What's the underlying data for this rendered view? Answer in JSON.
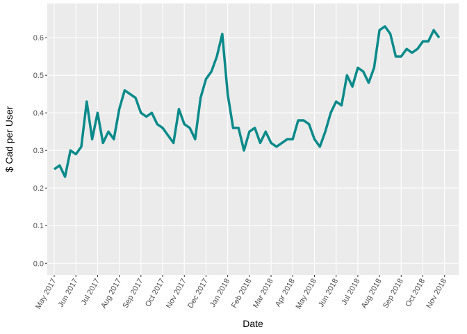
{
  "chart_data": {
    "type": "line",
    "x_label": "Date",
    "y_label": "$ Cad per User",
    "x": [
      0,
      0.25,
      0.5,
      0.75,
      1,
      1.25,
      1.5,
      1.75,
      2,
      2.25,
      2.5,
      2.75,
      3,
      3.25,
      3.5,
      3.75,
      4,
      4.25,
      4.5,
      4.75,
      5,
      5.25,
      5.5,
      5.75,
      6,
      6.25,
      6.5,
      6.75,
      7,
      7.25,
      7.5,
      7.75,
      8,
      8.25,
      8.5,
      8.75,
      9,
      9.25,
      9.5,
      9.75,
      10,
      10.25,
      10.5,
      10.75,
      11,
      11.25,
      11.5,
      11.75,
      12,
      12.25,
      12.5,
      12.75,
      13,
      13.25,
      13.5,
      13.75,
      14,
      14.25,
      14.5,
      14.75,
      15,
      15.25,
      15.5,
      15.75,
      16,
      16.25,
      16.5,
      16.75,
      17,
      17.25,
      17.5,
      17.75
    ],
    "values": [
      0.25,
      0.26,
      0.23,
      0.3,
      0.29,
      0.31,
      0.43,
      0.33,
      0.4,
      0.32,
      0.35,
      0.33,
      0.41,
      0.46,
      0.45,
      0.44,
      0.4,
      0.39,
      0.4,
      0.37,
      0.36,
      0.34,
      0.32,
      0.41,
      0.37,
      0.36,
      0.33,
      0.44,
      0.49,
      0.51,
      0.55,
      0.61,
      0.45,
      0.36,
      0.36,
      0.3,
      0.35,
      0.36,
      0.32,
      0.35,
      0.32,
      0.31,
      0.32,
      0.33,
      0.33,
      0.38,
      0.38,
      0.37,
      0.33,
      0.31,
      0.35,
      0.4,
      0.43,
      0.42,
      0.5,
      0.47,
      0.52,
      0.51,
      0.48,
      0.52,
      0.62,
      0.63,
      0.61,
      0.55,
      0.55,
      0.57,
      0.56,
      0.57,
      0.59,
      0.59,
      0.62,
      0.6
    ],
    "color": "#0b8a8a",
    "xlim": [
      -0.32,
      18.65
    ],
    "xticks": [
      {
        "value": 0,
        "label": "May 2017"
      },
      {
        "value": 1,
        "label": "Jun 2017"
      },
      {
        "value": 2,
        "label": "Jul 2017"
      },
      {
        "value": 3,
        "label": "Aug 2017"
      },
      {
        "value": 4,
        "label": "Sep 2017"
      },
      {
        "value": 5,
        "label": "Oct 2017"
      },
      {
        "value": 6,
        "label": "Nov 2017"
      },
      {
        "value": 7,
        "label": "Dec 2017"
      },
      {
        "value": 8,
        "label": "Jan 2018"
      },
      {
        "value": 9,
        "label": "Feb 2018"
      },
      {
        "value": 10,
        "label": "Mar 2018"
      },
      {
        "value": 11,
        "label": "Apr 2018"
      },
      {
        "value": 12,
        "label": "May 2018"
      },
      {
        "value": 13,
        "label": "Jun 2018"
      },
      {
        "value": 14,
        "label": "Jul 2018"
      },
      {
        "value": 15,
        "label": "Aug 2018"
      },
      {
        "value": 16,
        "label": "Sep 2018"
      },
      {
        "value": 17,
        "label": "Oct 2018"
      },
      {
        "value": 18,
        "label": "Nov 2018"
      }
    ],
    "ylim": [
      -0.031,
      0.691
    ],
    "yticks": [
      {
        "value": 0,
        "label": "0.0"
      },
      0.1,
      0.2,
      0.3,
      0.4,
      0.5,
      0.6
    ],
    "grid": true
  }
}
